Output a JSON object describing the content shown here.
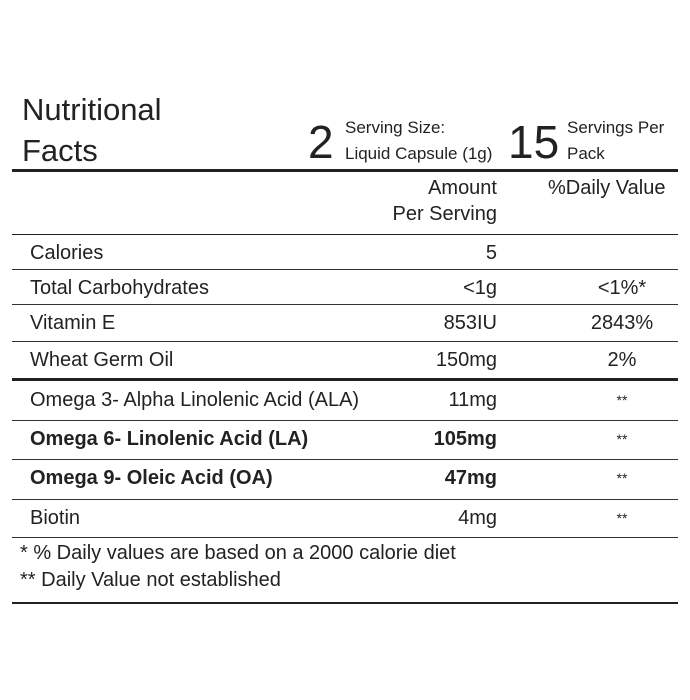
{
  "header": {
    "title_lines": [
      "Nutritional",
      "Facts"
    ],
    "servings": [
      {
        "number": "2",
        "lines": [
          "Serving Size:",
          "Liquid Capsule (1g)"
        ]
      },
      {
        "number": "15",
        "lines": [
          "Servings Per",
          "Pack"
        ]
      }
    ]
  },
  "table": {
    "columns": [
      [
        "Amount",
        "Per Serving"
      ],
      "%Daily Value"
    ],
    "rows": [
      [
        "Calories",
        "5",
        null
      ],
      [
        "Total Carbohydrates",
        "<1g",
        "<1%*"
      ],
      [
        "Vitamin E",
        "853IU",
        "2843%"
      ],
      [
        "Wheat Germ Oil",
        "150mg",
        "2%"
      ],
      [
        "Omega 3- Alpha Linolenic Acid (ALA)",
        "11mg",
        "**"
      ],
      [
        "Omega 6- Linolenic Acid (LA)",
        "105mg",
        "**"
      ],
      [
        "Omega 9- Oleic Acid (OA)",
        "47mg",
        "**"
      ],
      [
        "Biotin",
        "4mg",
        "**"
      ]
    ]
  },
  "footnotes": [
    "* % Daily values are based on a 2000 calorie diet",
    "** Daily Value not established"
  ]
}
